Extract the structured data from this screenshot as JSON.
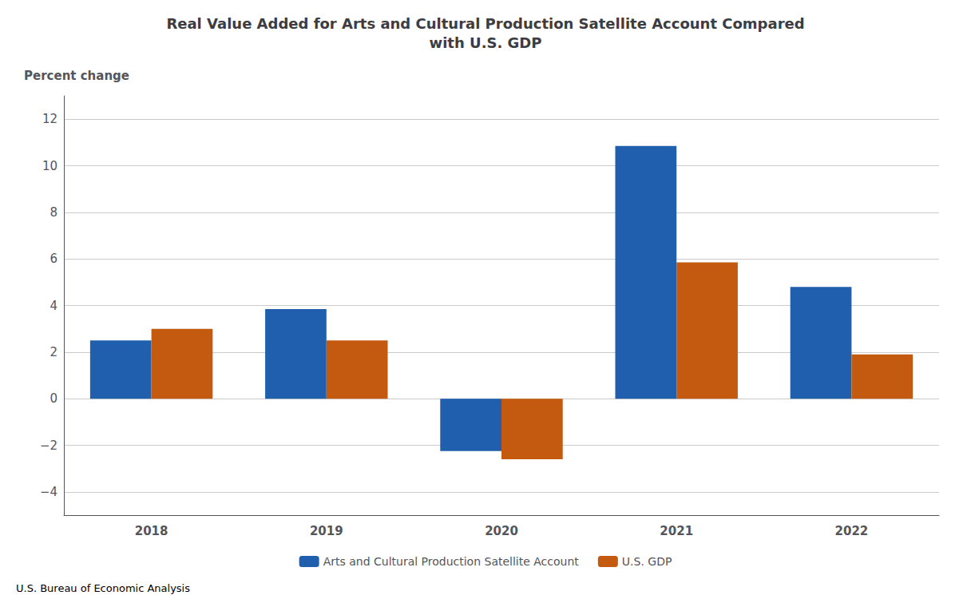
{
  "chart_data": {
    "type": "bar",
    "title": "Real Value Added for Arts and Cultural Production Satellite Account Compared\nwith U.S. GDP",
    "ylabel": "Percent change",
    "categories": [
      "2018",
      "2019",
      "2020",
      "2021",
      "2022"
    ],
    "series": [
      {
        "name": "Arts and Cultural Production Satellite Account",
        "color": "#1F5FAD",
        "values": [
          2.5,
          3.85,
          -2.25,
          10.85,
          4.8
        ]
      },
      {
        "name": "U.S. GDP",
        "color": "#C45A10",
        "values": [
          3.0,
          2.5,
          -2.6,
          5.85,
          1.9
        ]
      }
    ],
    "ylim": [
      -5,
      13
    ],
    "yticks": [
      {
        "value": -4,
        "label": "−4"
      },
      {
        "value": -2,
        "label": "−2"
      },
      0,
      2,
      4,
      6,
      8,
      10,
      12
    ],
    "grid": true,
    "legend": "bottom",
    "annotations": [
      "U.S. Bureau of Economic Analysis"
    ]
  }
}
